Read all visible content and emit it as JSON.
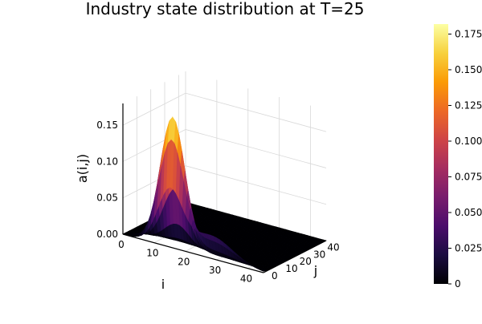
{
  "chart_data": {
    "type": "surface",
    "title": "Industry state distribution at T=25",
    "xlabel": "i",
    "ylabel": "j",
    "zlabel": "a(i,j)",
    "x_ticks": [
      "0",
      "10",
      "20",
      "30",
      "40"
    ],
    "y_ticks": [
      "0",
      "10",
      "20",
      "30",
      "40"
    ],
    "z_ticks": [
      "0.00",
      "0.05",
      "0.10",
      "0.15"
    ],
    "colorbar_ticks": [
      "0",
      "0.025",
      "0.050",
      "0.075",
      "0.100",
      "0.125",
      "0.150",
      "0.175"
    ],
    "xlim": [
      0,
      45
    ],
    "ylim": [
      0,
      45
    ],
    "zlim": [
      0,
      0.18
    ],
    "colorbar_lim": [
      0,
      0.182
    ],
    "colormap": "inferno",
    "colormap_stops": [
      "#000004",
      "#1b0c41",
      "#4a0c6b",
      "#781c6d",
      "#a52c60",
      "#cf4446",
      "#ed6925",
      "#fb9b06",
      "#f7d13d",
      "#fcffa4"
    ],
    "grid": true,
    "surface_peak": {
      "i": 15,
      "j": 2,
      "a": 0.175
    }
  }
}
